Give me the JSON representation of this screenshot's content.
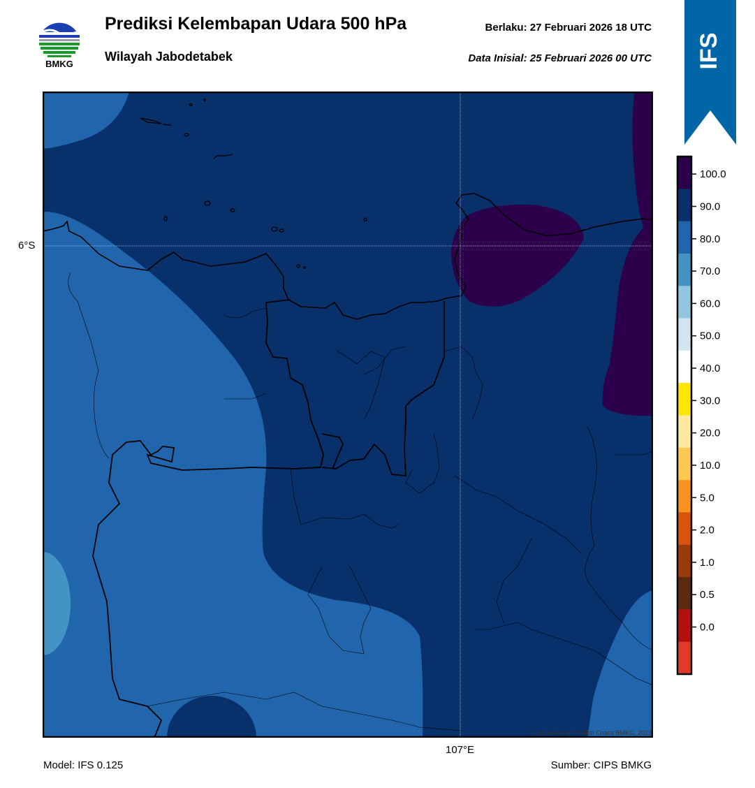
{
  "header": {
    "title": "Prediksi Kelembapan Udara 500 hPa",
    "subtitle": "Wilayah Jabodetabek",
    "valid_time": "Berlaku:  27 Februari 2026 18 UTC",
    "initial_time": "Data Inisial:  25 Februari 2026 00 UTC"
  },
  "logo": {
    "text": "BMKG",
    "icon": "bmkg-logo-icon"
  },
  "ribbon": {
    "label": "IFS",
    "color": "#0066a8"
  },
  "map": {
    "lat_label": "6°S",
    "lon_label": "107°E",
    "copyright": "©Sub Bidang Prediksi Cuaca BMKG, 2023",
    "field_colors": {
      "dark_navy": "#08306b",
      "blue": "#2166ac",
      "light_blue": "#4393c3",
      "purple": "#2d004b"
    }
  },
  "footer": {
    "model": "Model: IFS 0.125",
    "source": "Sumber: CIPS BMKG"
  },
  "colorbar": {
    "labels": [
      "100.0",
      "90.0",
      "80.0",
      "70.0",
      "60.0",
      "50.0",
      "40.0",
      "30.0",
      "20.0",
      "10.0",
      "5.0",
      "2.0",
      "1.0",
      "0.5",
      "0.0"
    ],
    "colors": [
      "#2d004b",
      "#08306b",
      "#2166ac",
      "#4393c3",
      "#92c5de",
      "#d1e5f0",
      "#ffffff",
      "#ffe600",
      "#ffe8a0",
      "#ffc850",
      "#f7931e",
      "#d9530f",
      "#9a3a0a",
      "#5c2a0f",
      "#b3100f",
      "#e03a2b"
    ]
  }
}
